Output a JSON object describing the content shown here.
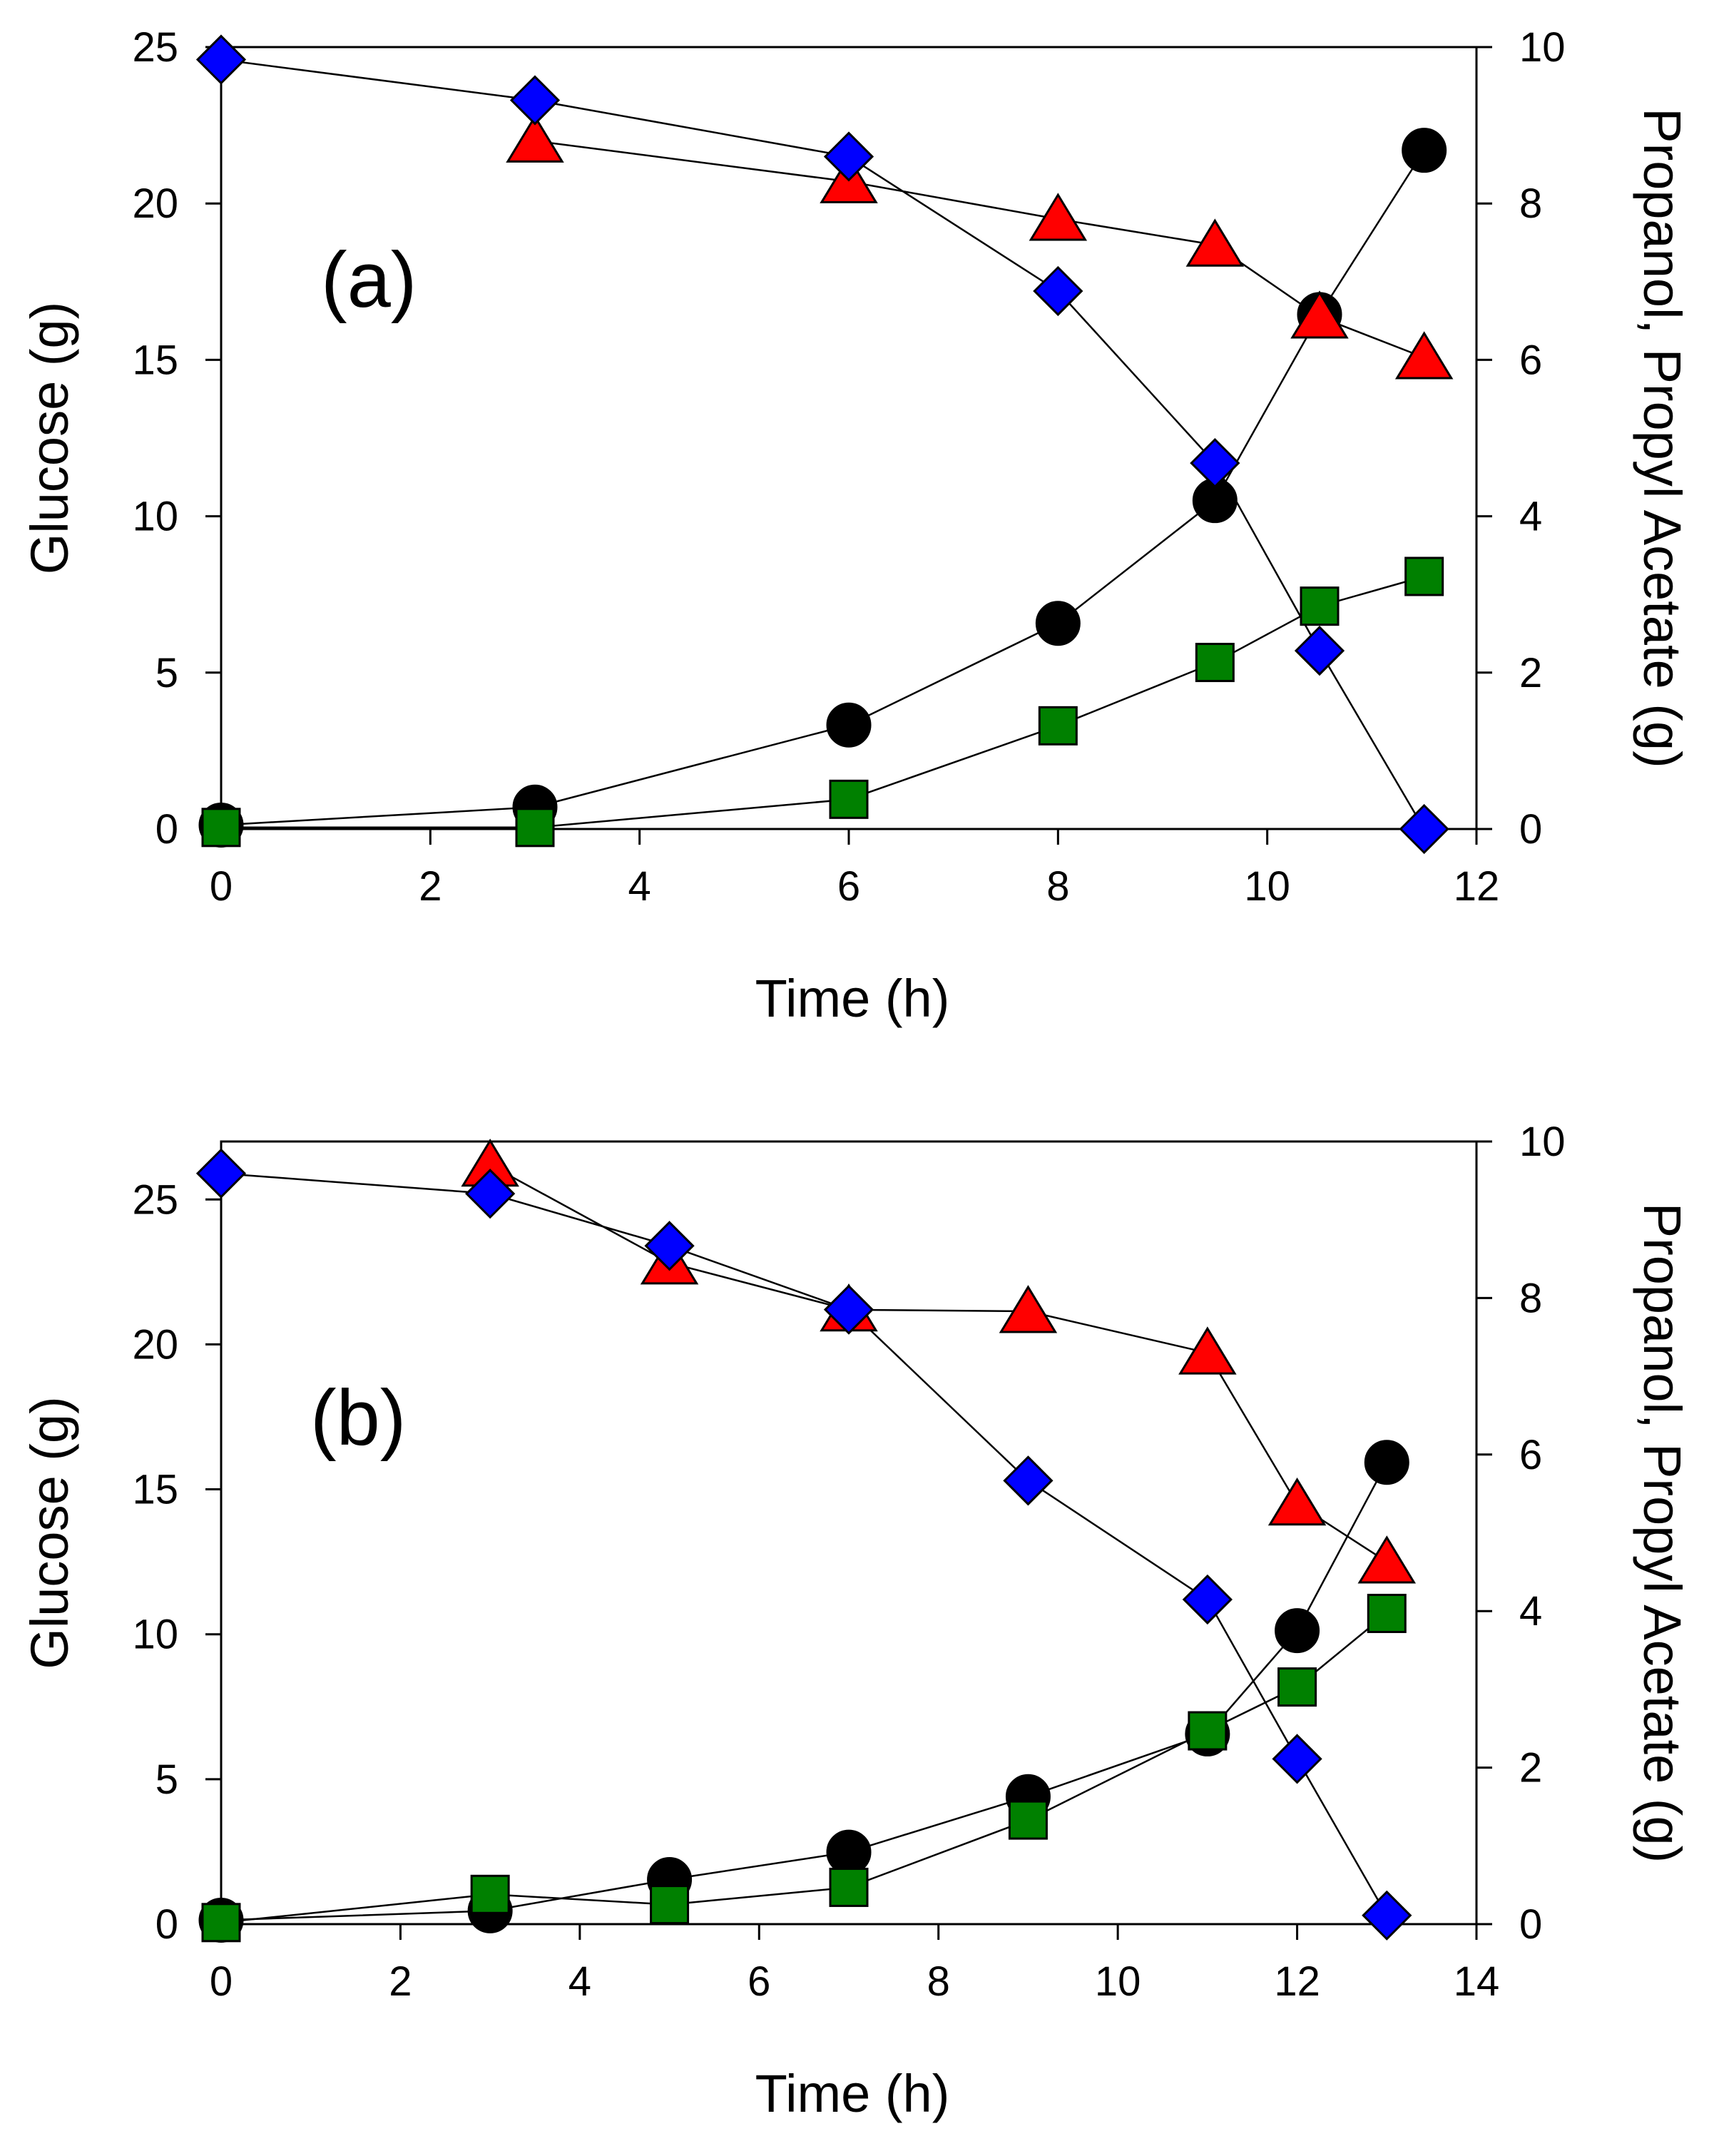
{
  "chart_data": [
    {
      "type": "line",
      "panel_label": "(a)",
      "xlabel": "Time (h)",
      "ylabel_left": "Glucose (g)",
      "ylabel_right": "Propanol, Propyl Acetate (g)",
      "xlim": [
        0,
        12
      ],
      "ylim_left": [
        0,
        25
      ],
      "ylim_right": [
        0,
        10
      ],
      "xticks": [
        "0",
        "2",
        "4",
        "6",
        "8",
        "10",
        "12"
      ],
      "yticks_left": [
        "0",
        "5",
        "10",
        "15",
        "20",
        "25"
      ],
      "yticks_right": [
        "0",
        "2",
        "4",
        "6",
        "8",
        "10"
      ],
      "series": [
        {
          "name": "black circles",
          "marker": "circle",
          "color": "#000000",
          "axis": "right",
          "x": [
            0,
            3,
            6,
            8,
            9.5,
            10.5,
            11.5
          ],
          "y": [
            0.05,
            0.28,
            1.33,
            2.63,
            4.2,
            6.58,
            8.68
          ]
        },
        {
          "name": "green squares",
          "marker": "square",
          "color": "#008000",
          "axis": "right",
          "x": [
            0,
            3,
            6,
            8,
            9.5,
            10.5,
            11.5
          ],
          "y": [
            0.02,
            0.02,
            0.38,
            1.32,
            2.13,
            2.85,
            3.23
          ]
        },
        {
          "name": "red triangles",
          "marker": "triangle",
          "color": "#ff0000",
          "axis": "right",
          "x": [
            3,
            6,
            8,
            9.5,
            10.5,
            11.5
          ],
          "y": [
            8.8,
            8.28,
            7.8,
            7.47,
            6.55,
            6.03
          ]
        },
        {
          "name": "blue diamonds",
          "marker": "diamond",
          "color": "#0000ff",
          "axis": "left",
          "x": [
            0,
            3,
            6,
            8,
            9.5,
            10.5,
            11.5
          ],
          "y": [
            24.6,
            23.3,
            21.5,
            17.2,
            11.7,
            5.7,
            0.0
          ]
        }
      ]
    },
    {
      "type": "line",
      "panel_label": "(b)",
      "xlabel": "Time (h)",
      "ylabel_left": "Glucose (g)",
      "ylabel_right": "Propanol, Propyl Acetate (g)",
      "xlim": [
        0,
        14
      ],
      "ylim_left": [
        0,
        27
      ],
      "ylim_right": [
        0,
        10
      ],
      "xticks": [
        "0",
        "2",
        "4",
        "6",
        "8",
        "10",
        "12",
        "14"
      ],
      "yticks_left": [
        "0",
        "5",
        "10",
        "15",
        "20",
        "25"
      ],
      "yticks_right": [
        "0",
        "2",
        "4",
        "6",
        "8",
        "10"
      ],
      "series": [
        {
          "name": "black circles",
          "marker": "circle",
          "color": "#000000",
          "axis": "right",
          "x": [
            0,
            3,
            5,
            7,
            9,
            11,
            12,
            13
          ],
          "y": [
            0.05,
            0.17,
            0.57,
            0.92,
            1.63,
            2.43,
            3.75,
            5.9
          ]
        },
        {
          "name": "green squares",
          "marker": "square",
          "color": "#008000",
          "axis": "right",
          "x": [
            0,
            3,
            5,
            7,
            9,
            11,
            12,
            13
          ],
          "y": [
            0.02,
            0.38,
            0.25,
            0.47,
            1.33,
            2.47,
            3.03,
            3.97
          ]
        },
        {
          "name": "red triangles",
          "marker": "triangle",
          "color": "#ff0000",
          "axis": "right",
          "x": [
            3,
            5,
            7,
            9,
            11,
            12,
            13
          ],
          "y": [
            9.7,
            8.45,
            7.85,
            7.83,
            7.3,
            5.37,
            4.63
          ]
        },
        {
          "name": "blue diamonds",
          "marker": "diamond",
          "color": "#0000ff",
          "axis": "left",
          "x": [
            0,
            3,
            5,
            7,
            9,
            11,
            12,
            13
          ],
          "y": [
            25.9,
            25.2,
            23.4,
            21.2,
            15.3,
            11.2,
            5.7,
            0.3
          ]
        }
      ]
    }
  ]
}
